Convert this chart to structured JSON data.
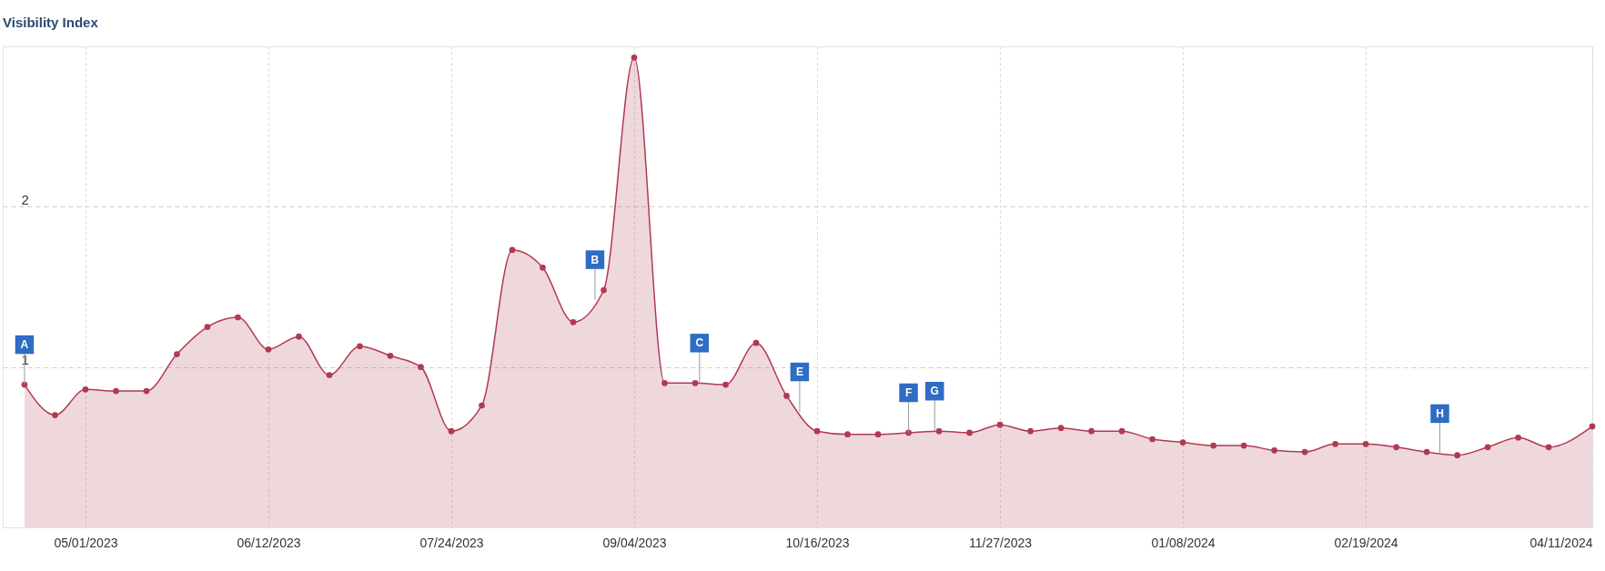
{
  "chart_data": {
    "type": "area",
    "title": "Visibility Index",
    "x": [
      "2023-04-17",
      "2023-04-24",
      "2023-05-01",
      "2023-05-08",
      "2023-05-15",
      "2023-05-22",
      "2023-05-29",
      "2023-06-05",
      "2023-06-12",
      "2023-06-19",
      "2023-06-26",
      "2023-07-03",
      "2023-07-10",
      "2023-07-17",
      "2023-07-24",
      "2023-07-31",
      "2023-08-07",
      "2023-08-14",
      "2023-08-21",
      "2023-08-28",
      "2023-09-04",
      "2023-09-11",
      "2023-09-18",
      "2023-09-25",
      "2023-10-02",
      "2023-10-09",
      "2023-10-16",
      "2023-10-23",
      "2023-10-30",
      "2023-11-06",
      "2023-11-13",
      "2023-11-20",
      "2023-11-27",
      "2023-12-04",
      "2023-12-11",
      "2023-12-18",
      "2023-12-25",
      "2024-01-01",
      "2024-01-08",
      "2024-01-15",
      "2024-01-22",
      "2024-01-29",
      "2024-02-05",
      "2024-02-12",
      "2024-02-19",
      "2024-02-26",
      "2024-03-04",
      "2024-03-11",
      "2024-03-18",
      "2024-03-25",
      "2024-04-01",
      "2024-04-11"
    ],
    "series": [
      {
        "color": "#b03a52",
        "values": [
          0.89,
          0.7,
          0.86,
          0.85,
          0.85,
          1.08,
          1.25,
          1.31,
          1.11,
          1.19,
          0.95,
          1.13,
          1.07,
          1.0,
          0.6,
          0.76,
          1.73,
          1.62,
          1.28,
          1.48,
          2.93,
          0.9,
          0.9,
          0.89,
          1.15,
          0.82,
          0.6,
          0.58,
          0.58,
          0.59,
          0.6,
          0.59,
          0.64,
          0.6,
          0.62,
          0.6,
          0.6,
          0.55,
          0.53,
          0.51,
          0.51,
          0.48,
          0.47,
          0.52,
          0.52,
          0.5,
          0.47,
          0.45,
          0.5,
          0.56,
          0.5,
          0.63
        ]
      }
    ],
    "xlim": [
      "2023-04-12",
      "2024-04-11"
    ],
    "xticks": [
      {
        "value": "2023-05-01",
        "label": "05/01/2023"
      },
      {
        "value": "2023-06-12",
        "label": "06/12/2023"
      },
      {
        "value": "2023-07-24",
        "label": "07/24/2023"
      },
      {
        "value": "2023-09-04",
        "label": "09/04/2023"
      },
      {
        "value": "2023-10-16",
        "label": "10/16/2023"
      },
      {
        "value": "2023-11-27",
        "label": "11/27/2023"
      },
      {
        "value": "2024-01-08",
        "label": "01/08/2024"
      },
      {
        "value": "2024-02-19",
        "label": "02/19/2024"
      },
      {
        "value": "2024-04-11",
        "label": "04/11/2024"
      }
    ],
    "ylim": [
      0,
      3
    ],
    "yticks": [
      1,
      2
    ],
    "grid": true,
    "marker": "circle",
    "line_style": "solid",
    "annotations": [
      {
        "text": "A",
        "x": "2023-04-17",
        "y": 0.89
      },
      {
        "text": "B",
        "x": "2023-08-26",
        "y": 1.42
      },
      {
        "text": "C",
        "x": "2023-09-19",
        "y": 0.9
      },
      {
        "text": "E",
        "x": "2023-10-12",
        "y": 0.72
      },
      {
        "text": "F",
        "x": "2023-11-06",
        "y": 0.59
      },
      {
        "text": "G",
        "x": "2023-11-12",
        "y": 0.6
      },
      {
        "text": "H",
        "x": "2024-03-07",
        "y": 0.46
      }
    ]
  }
}
